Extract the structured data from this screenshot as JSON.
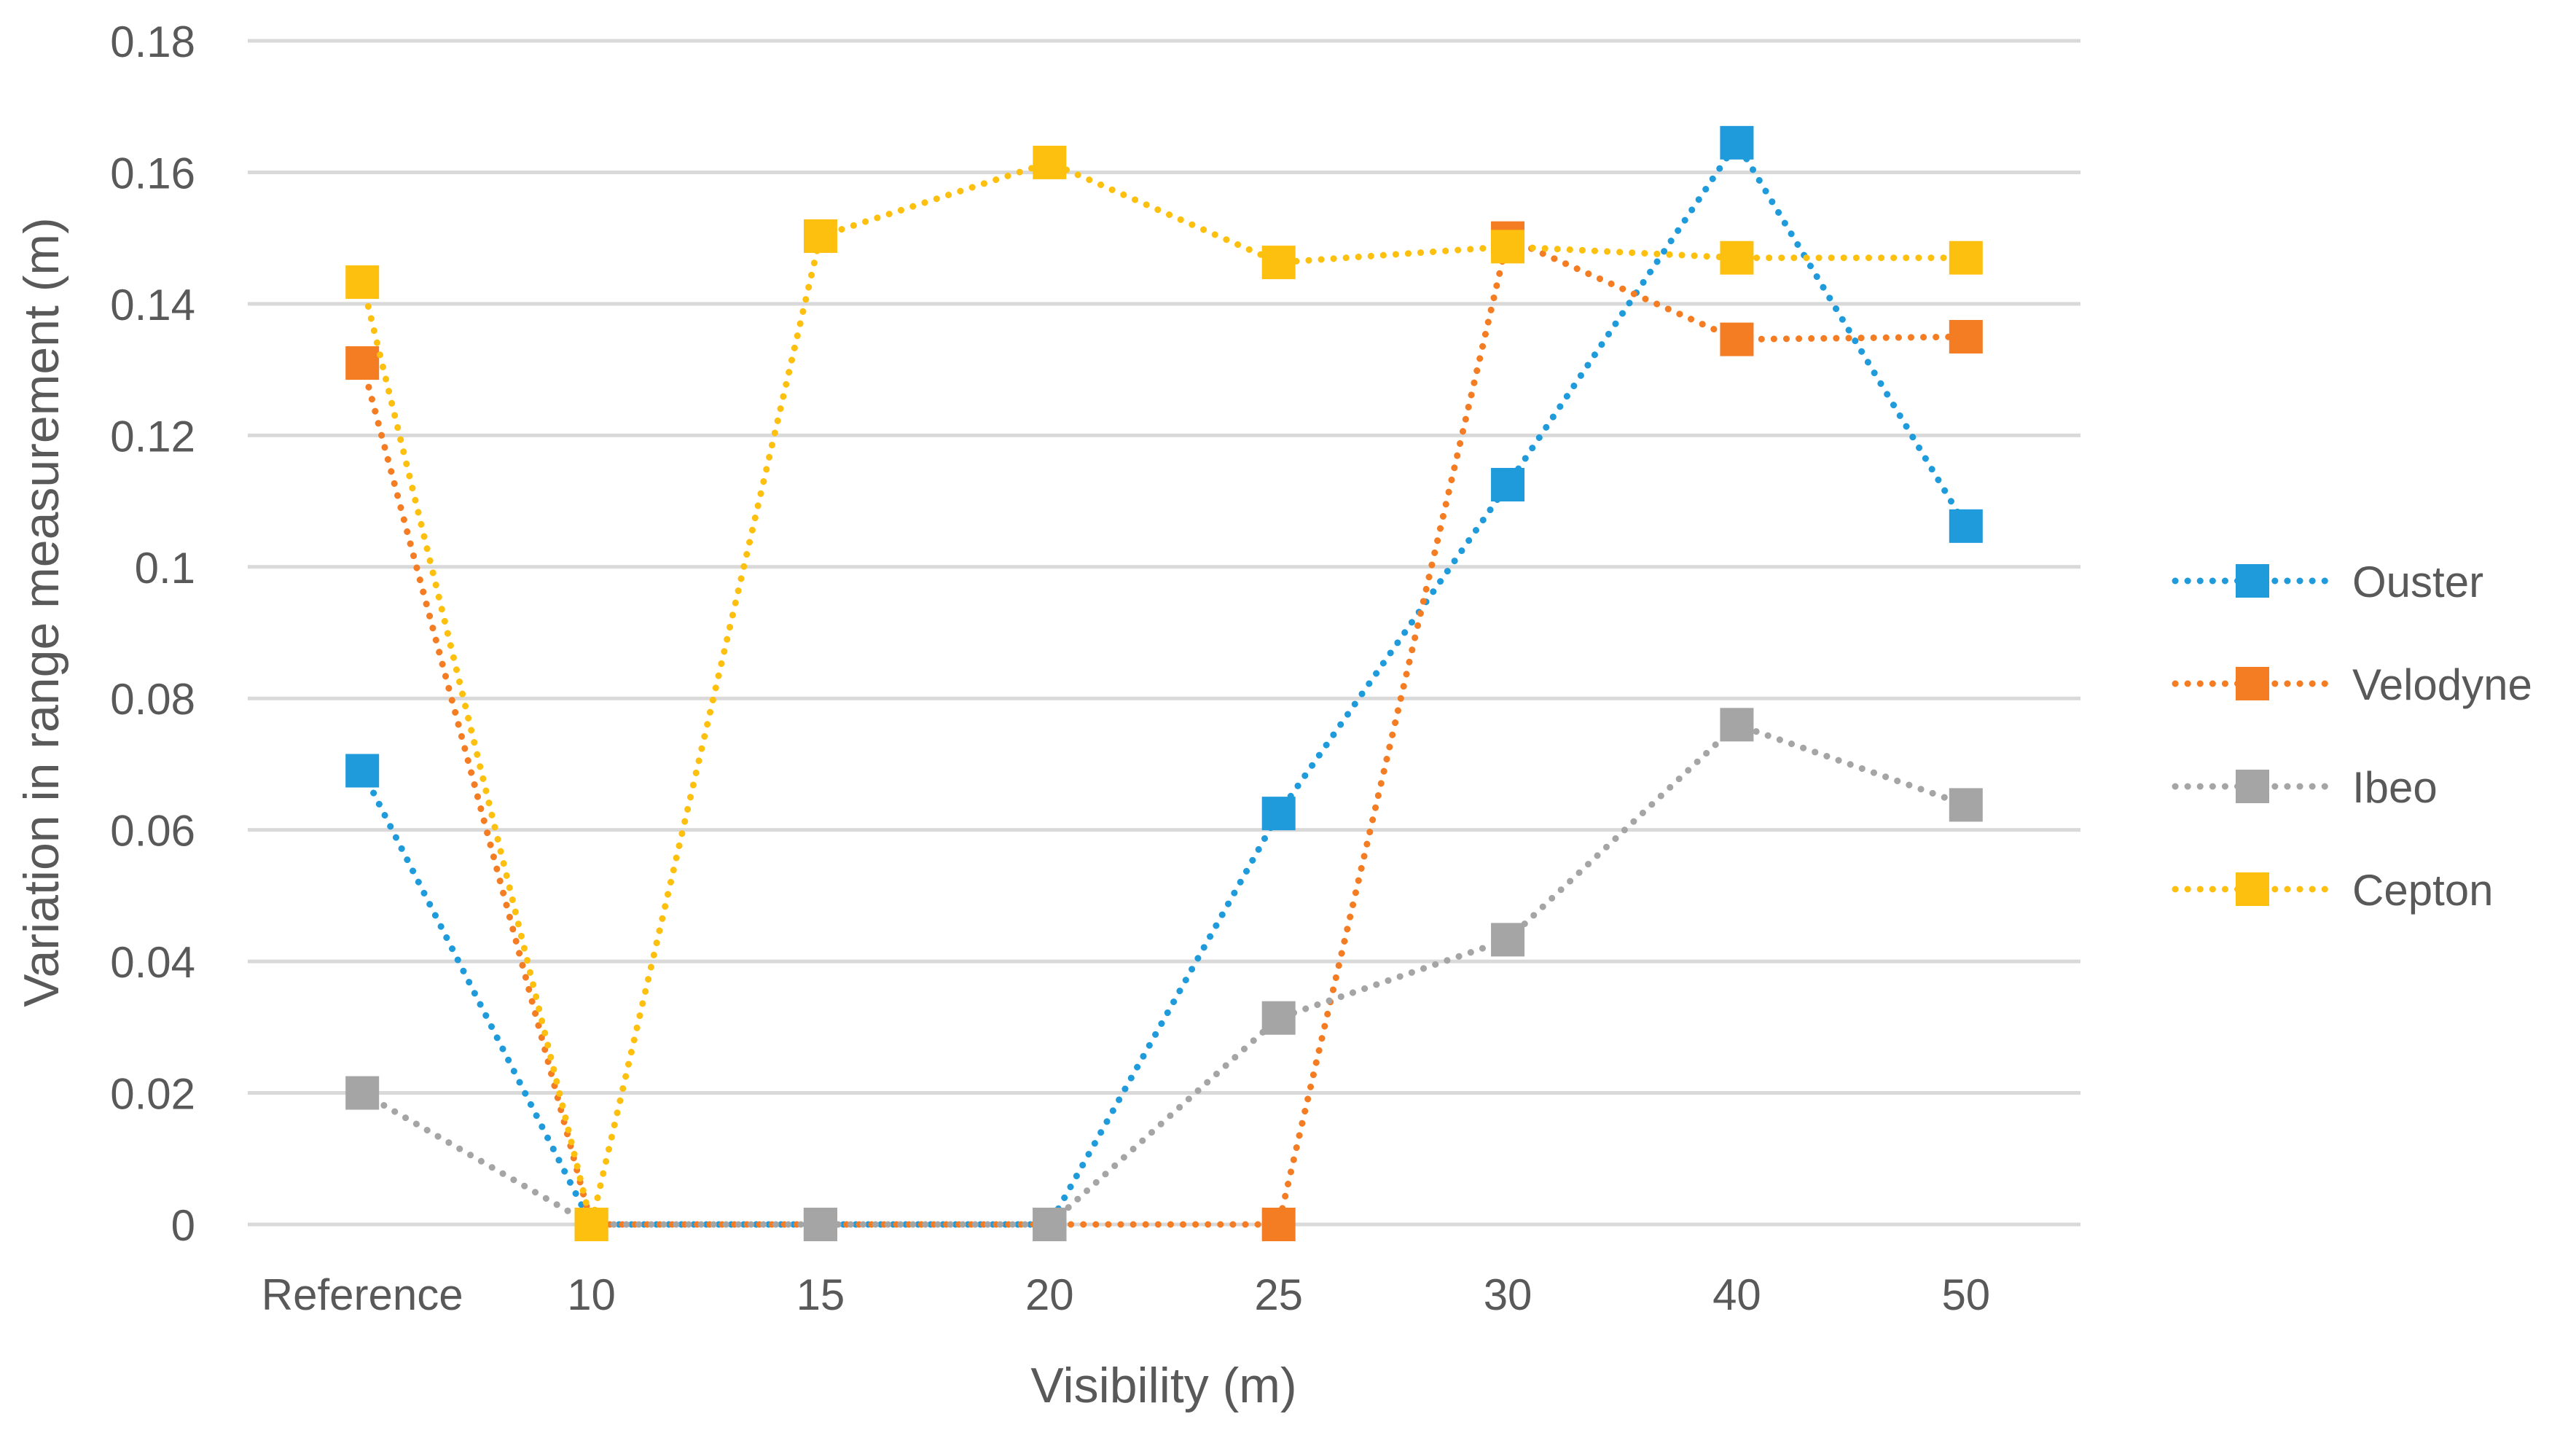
{
  "chart_data": {
    "type": "line",
    "title": "",
    "xlabel": "Visibility (m)",
    "ylabel": "Variation in range measurement (m)",
    "categories": [
      "Reference",
      "10",
      "15",
      "20",
      "25",
      "30",
      "40",
      "50"
    ],
    "ylim": [
      0,
      0.18
    ],
    "y_ticks": [
      0,
      0.02,
      0.04,
      0.06,
      0.08,
      0.1,
      0.12,
      0.14,
      0.16,
      0.18
    ],
    "y_tick_labels": [
      "0",
      "0.02",
      "0.04",
      "0.06",
      "0.08",
      "0.1",
      "0.12",
      "0.14",
      "0.16",
      "0.18"
    ],
    "grid": true,
    "legend_position": "right",
    "series": [
      {
        "name": "Ouster",
        "color": "#1F9BDC",
        "values": [
          0.069,
          0,
          0,
          0,
          0.0625,
          0.1125,
          0.1645,
          0.1062
        ]
      },
      {
        "name": "Velodyne",
        "color": "#F47C22",
        "values": [
          0.131,
          0,
          0,
          0,
          0,
          0.15,
          0.1346,
          0.135
        ]
      },
      {
        "name": "Ibeo",
        "color": "#A5A5A5",
        "values": [
          0.02,
          0,
          0,
          0,
          0.0314,
          0.0433,
          0.076,
          0.0638
        ]
      },
      {
        "name": "Cepton",
        "color": "#FDC00F",
        "values": [
          0.1433,
          0,
          0.1503,
          0.1615,
          0.1463,
          0.1487,
          0.147,
          0.147
        ]
      }
    ]
  }
}
